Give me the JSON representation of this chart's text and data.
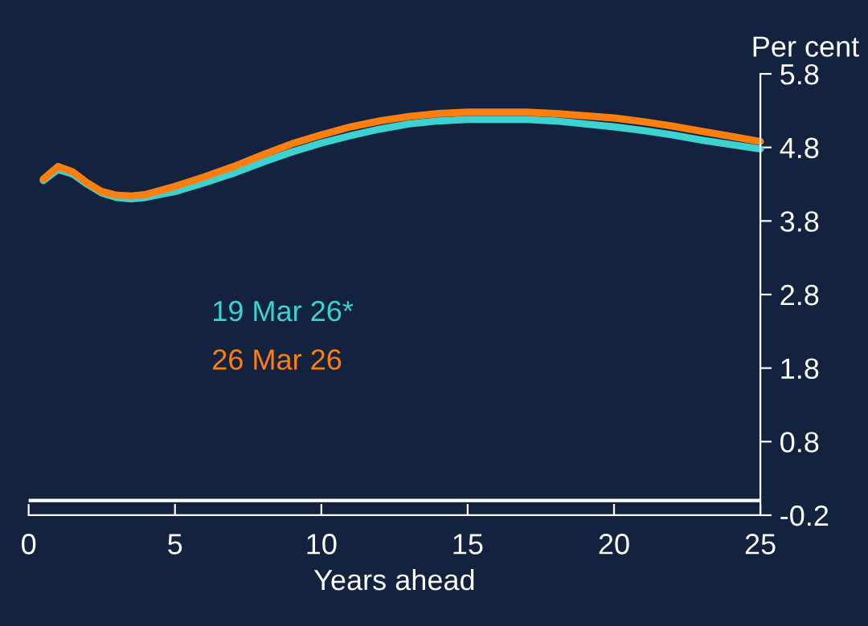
{
  "chart_data": {
    "type": "line",
    "ylabel": "Per cent",
    "xlabel": "Years ahead",
    "x": [
      0.5,
      1,
      1.5,
      2,
      2.5,
      3,
      3.5,
      4,
      5,
      6,
      7,
      8,
      9,
      10,
      11,
      12,
      13,
      14,
      15,
      16,
      17,
      18,
      19,
      20,
      21,
      22,
      23,
      24,
      25
    ],
    "series": [
      {
        "name": "19 Mar 26*",
        "color": "#3cd2d2",
        "values": [
          4.35,
          4.5,
          4.44,
          4.3,
          4.18,
          4.12,
          4.1,
          4.12,
          4.2,
          4.32,
          4.45,
          4.6,
          4.74,
          4.86,
          4.96,
          5.05,
          5.12,
          5.16,
          5.18,
          5.18,
          5.18,
          5.16,
          5.12,
          5.08,
          5.03,
          4.97,
          4.9,
          4.84,
          4.78
        ]
      },
      {
        "name": "26 Mar 26",
        "color": "#ff7f0e",
        "values": [
          4.37,
          4.54,
          4.47,
          4.32,
          4.2,
          4.15,
          4.14,
          4.16,
          4.27,
          4.4,
          4.54,
          4.7,
          4.85,
          4.97,
          5.08,
          5.16,
          5.22,
          5.26,
          5.28,
          5.28,
          5.28,
          5.26,
          5.23,
          5.2,
          5.15,
          5.09,
          5.02,
          4.95,
          4.88
        ]
      }
    ],
    "xlim": [
      0,
      25
    ],
    "xticks": [
      0,
      5,
      10,
      15,
      20,
      25
    ],
    "ylim": [
      -0.2,
      5.8
    ],
    "yticks": [
      -0.2,
      0.8,
      1.8,
      2.8,
      3.8,
      4.8,
      5.8
    ],
    "ref_lines": [
      {
        "axis": "y",
        "value": 0,
        "color": "#ffffff"
      }
    ],
    "grid": false,
    "legend": false,
    "marker": "none",
    "line_style": "solid"
  }
}
